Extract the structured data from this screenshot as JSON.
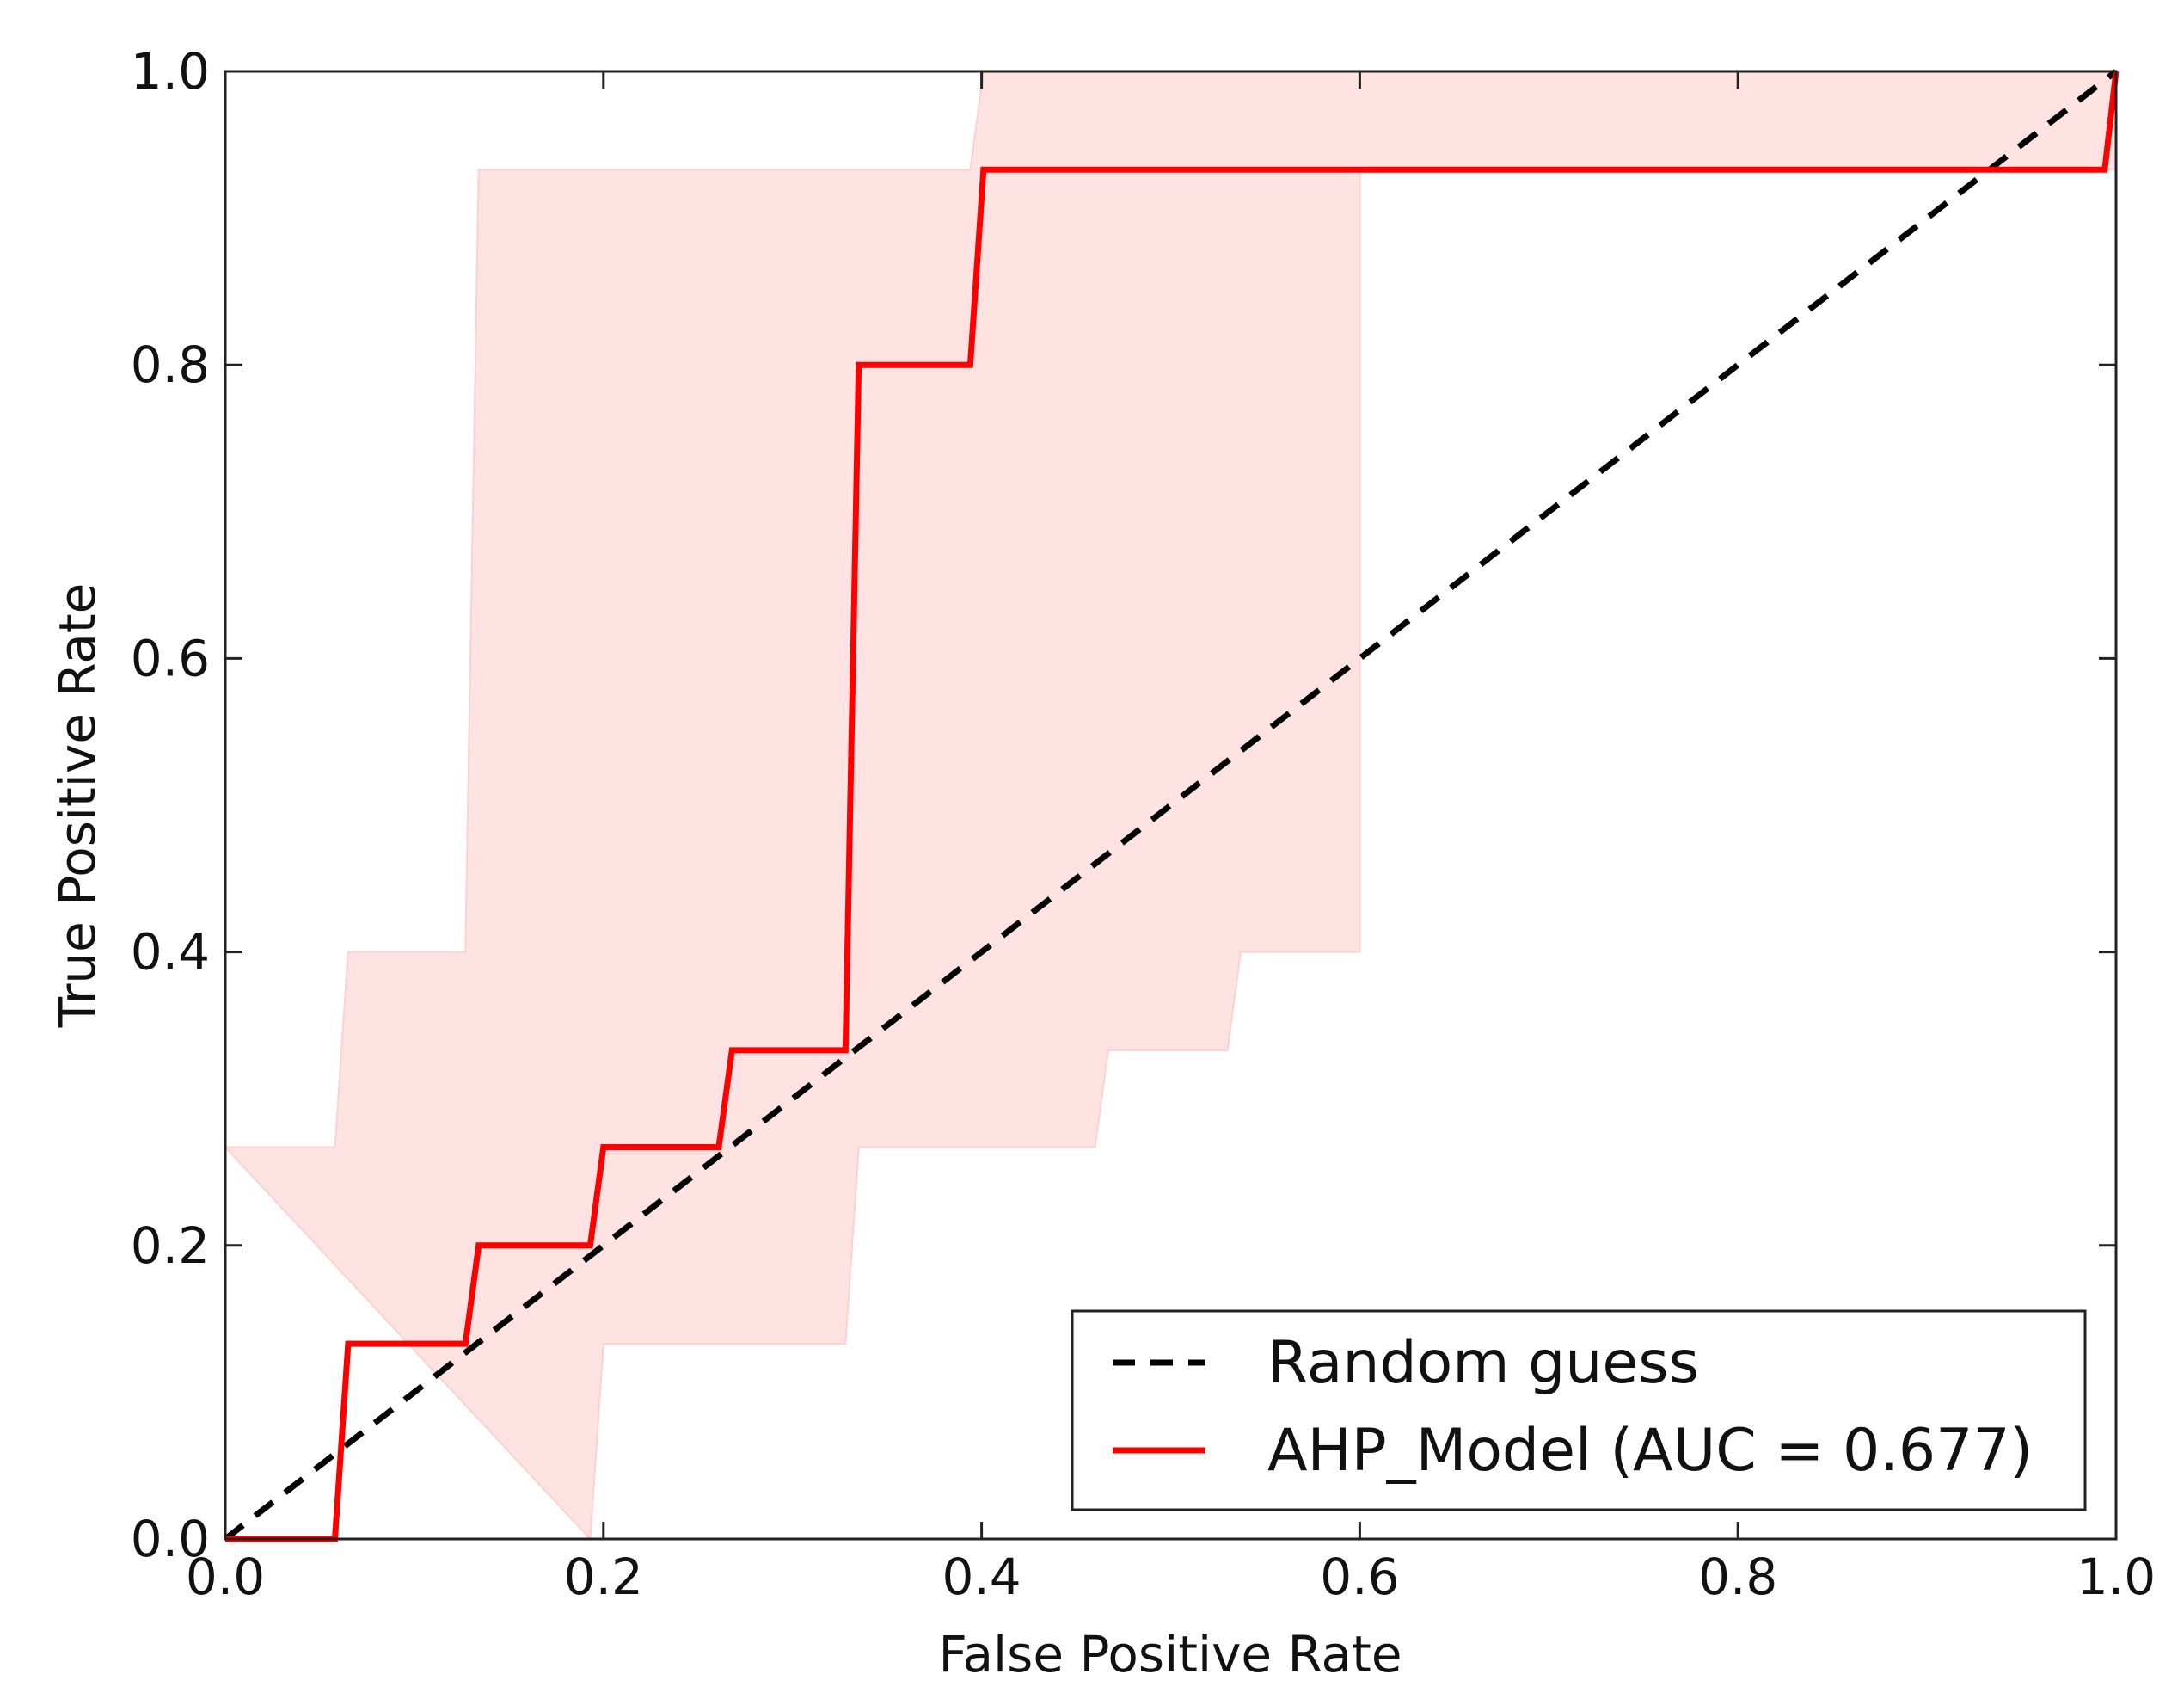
{
  "chart_data": {
    "type": "line",
    "title": "",
    "xlabel": "False Positive Rate",
    "ylabel": "True Positive Rate",
    "xlim": [
      0.0,
      1.0
    ],
    "ylim": [
      0.0,
      1.0
    ],
    "xticks": [
      "0.0",
      "0.2",
      "0.4",
      "0.6",
      "0.8",
      "1.0"
    ],
    "yticks": [
      "0.0",
      "0.2",
      "0.4",
      "0.6",
      "0.8",
      "1.0"
    ],
    "grid": false,
    "legend_position": "bottom-right",
    "colors": {
      "model": "#ff0000",
      "band": "#ffe3e3",
      "band_edge": "#ffd0d0",
      "random": "#000000",
      "axis": "#222222"
    },
    "series": [
      {
        "name": "Random guess",
        "style": "dashed",
        "x": [
          0.0,
          1.0
        ],
        "y": [
          0.0,
          1.0
        ]
      },
      {
        "name": "AHP_Model (AUC = 0.677)",
        "style": "solid",
        "x": [
          0.0,
          0.058,
          0.065,
          0.127,
          0.134,
          0.193,
          0.2,
          0.261,
          0.268,
          0.328,
          0.335,
          0.394,
          0.401,
          0.994,
          1.0
        ],
        "y": [
          0.0,
          0.0,
          0.133,
          0.133,
          0.2,
          0.2,
          0.267,
          0.267,
          0.333,
          0.333,
          0.8,
          0.8,
          0.933,
          0.933,
          1.0
        ]
      }
    ],
    "confidence_band": {
      "upper": {
        "x": [
          0.0,
          0.058,
          0.065,
          0.127,
          0.134,
          0.394,
          0.401,
          1.0
        ],
        "y": [
          0.267,
          0.267,
          0.4,
          0.4,
          0.933,
          0.933,
          1.0,
          1.0
        ]
      },
      "lower": {
        "x": [
          0.193,
          0.2,
          0.328,
          0.335,
          0.46,
          0.467,
          0.53,
          0.537,
          0.6,
          0.6,
          0.608,
          1.0
        ],
        "y": [
          0.0,
          0.133,
          0.133,
          0.267,
          0.267,
          0.333,
          0.333,
          0.4,
          0.4,
          0.933,
          0.933,
          0.933
        ]
      }
    }
  }
}
